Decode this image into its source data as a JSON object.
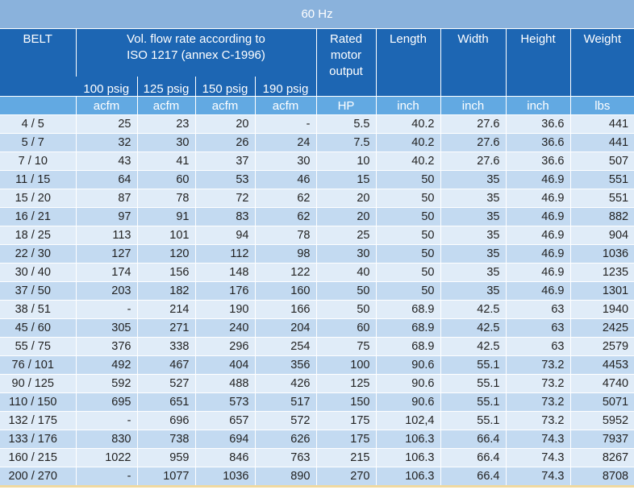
{
  "title": "60 Hz",
  "headers": {
    "belt": "BELT",
    "flow_line1": "Vol. flow rate according to",
    "flow_line2": "ISO 1217 (annex C-1996)",
    "pressures": [
      "100 psig",
      "125 psig",
      "150 psig",
      "190 psig"
    ],
    "rated_line1": "Rated",
    "rated_line2": "motor",
    "rated_line3": "output",
    "length": "Length",
    "width": "Width",
    "height": "Height",
    "weight": "Weight"
  },
  "units": [
    "acfm",
    "acfm",
    "acfm",
    "acfm",
    "HP",
    "inch",
    "inch",
    "inch",
    "lbs"
  ],
  "rows": [
    [
      "4 / 5",
      "25",
      "23",
      "20",
      "-",
      "5.5",
      "40.2",
      "27.6",
      "36.6",
      "441"
    ],
    [
      "5 / 7",
      "32",
      "30",
      "26",
      "24",
      "7.5",
      "40.2",
      "27.6",
      "36.6",
      "441"
    ],
    [
      "7 / 10",
      "43",
      "41",
      "37",
      "30",
      "10",
      "40.2",
      "27.6",
      "36.6",
      "507"
    ],
    [
      "11 / 15",
      "64",
      "60",
      "53",
      "46",
      "15",
      "50",
      "35",
      "46.9",
      "551"
    ],
    [
      "15 / 20",
      "87",
      "78",
      "72",
      "62",
      "20",
      "50",
      "35",
      "46.9",
      "551"
    ],
    [
      "16 / 21",
      "97",
      "91",
      "83",
      "62",
      "20",
      "50",
      "35",
      "46.9",
      "882"
    ],
    [
      "18 / 25",
      "113",
      "101",
      "94",
      "78",
      "25",
      "50",
      "35",
      "46.9",
      "904"
    ],
    [
      "22 / 30",
      "127",
      "120",
      "112",
      "98",
      "30",
      "50",
      "35",
      "46.9",
      "1036"
    ],
    [
      "30 / 40",
      "174",
      "156",
      "148",
      "122",
      "40",
      "50",
      "35",
      "46.9",
      "1235"
    ],
    [
      "37 / 50",
      "203",
      "182",
      "176",
      "160",
      "50",
      "50",
      "35",
      "46.9",
      "1301"
    ],
    [
      "38 / 51",
      "-",
      "214",
      "190",
      "166",
      "50",
      "68.9",
      "42.5",
      "63",
      "1940"
    ],
    [
      "45 / 60",
      "305",
      "271",
      "240",
      "204",
      "60",
      "68.9",
      "42.5",
      "63",
      "2425"
    ],
    [
      "55 / 75",
      "376",
      "338",
      "296",
      "254",
      "75",
      "68.9",
      "42.5",
      "63",
      "2579"
    ],
    [
      "76 / 101",
      "492",
      "467",
      "404",
      "356",
      "100",
      "90.6",
      "55.1",
      "73.2",
      "4453"
    ],
    [
      "90 / 125",
      "592",
      "527",
      "488",
      "426",
      "125",
      "90.6",
      "55.1",
      "73.2",
      "4740"
    ],
    [
      "110 / 150",
      "695",
      "651",
      "573",
      "517",
      "150",
      "90.6",
      "55.1",
      "73.2",
      "5071"
    ],
    [
      "132 / 175",
      "-",
      "696",
      "657",
      "572",
      "175",
      "102,4",
      "55.1",
      "73.2",
      "5952"
    ],
    [
      "133 / 176",
      "830",
      "738",
      "694",
      "626",
      "175",
      "106.3",
      "66.4",
      "74.3",
      "7937"
    ],
    [
      "160 / 215",
      "1022",
      "959",
      "846",
      "763",
      "215",
      "106.3",
      "66.4",
      "74.3",
      "8267"
    ],
    [
      "200 / 270",
      "-",
      "1077",
      "1036",
      "890",
      "270",
      "106.3",
      "66.4",
      "74.3",
      "8708"
    ]
  ]
}
